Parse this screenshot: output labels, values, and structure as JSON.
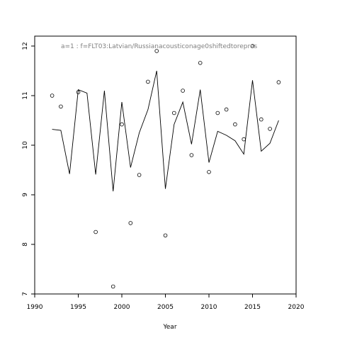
{
  "chart_data": {
    "type": "line",
    "title": "",
    "annotation": "a=1  :  f=FLT03:Latvian/Russianacousticonage0shiftedtorepres",
    "xlabel": "Year",
    "ylabel": "",
    "xlim": [
      1990,
      2020
    ],
    "ylim": [
      7,
      12.2
    ],
    "x_ticks": [
      1990,
      1995,
      2000,
      2005,
      2010,
      2015,
      2020
    ],
    "y_ticks": [
      7,
      8,
      9,
      10,
      11,
      12
    ],
    "grid": false,
    "legend": "none",
    "series": [
      {
        "style": "points",
        "marker": "open-circle",
        "x": [
          1992,
          1993,
          1995,
          1997,
          1999,
          2000,
          2001,
          2002,
          2003,
          2004,
          2005,
          2006,
          2007,
          2008,
          2009,
          2010,
          2011,
          2012,
          2013,
          2014,
          2015,
          2016,
          2017,
          2018
        ],
        "y": [
          11.0,
          10.78,
          11.07,
          8.25,
          7.15,
          10.42,
          8.43,
          9.4,
          11.28,
          11.9,
          8.18,
          10.65,
          11.1,
          9.8,
          11.66,
          9.46,
          10.65,
          10.72,
          10.42,
          10.12,
          12.0,
          10.52,
          10.33,
          11.27
        ]
      },
      {
        "style": "line",
        "x": [
          1992,
          1993,
          1994,
          1995,
          1996,
          1997,
          1998,
          1999,
          2000,
          2001,
          2002,
          2003,
          2004,
          2005,
          2006,
          2007,
          2008,
          2009,
          2010,
          2011,
          2012,
          2013,
          2014,
          2015,
          2016,
          2017,
          2018
        ],
        "y": [
          10.32,
          10.3,
          9.42,
          11.12,
          11.05,
          9.41,
          11.1,
          9.07,
          10.87,
          9.55,
          10.25,
          10.72,
          11.5,
          9.12,
          10.42,
          10.87,
          10.02,
          11.12,
          9.65,
          10.28,
          10.2,
          10.09,
          9.82,
          11.31,
          9.88,
          10.04,
          10.5
        ]
      }
    ]
  }
}
